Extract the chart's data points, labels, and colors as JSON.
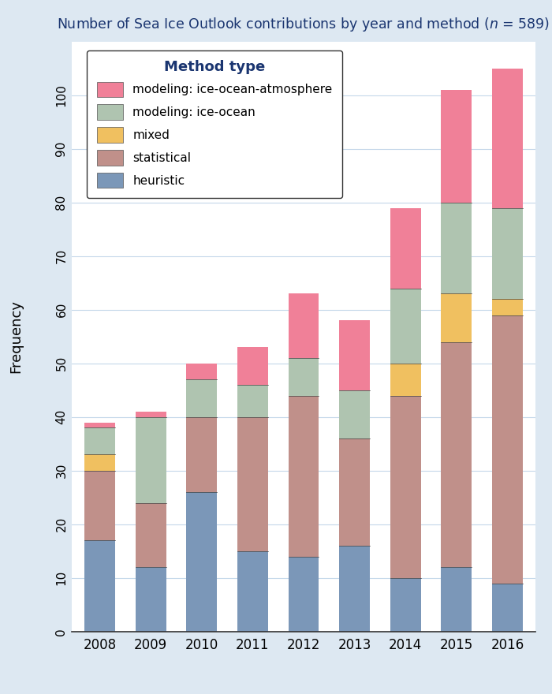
{
  "years": [
    "2008",
    "2009",
    "2010",
    "2011",
    "2012",
    "2013",
    "2014",
    "2015",
    "2016"
  ],
  "heuristic": [
    17,
    12,
    26,
    15,
    14,
    16,
    10,
    12,
    9
  ],
  "statistical": [
    13,
    12,
    14,
    25,
    30,
    20,
    34,
    42,
    50
  ],
  "mixed": [
    3,
    0,
    0,
    0,
    0,
    0,
    6,
    9,
    3
  ],
  "ice_ocean": [
    5,
    16,
    7,
    6,
    7,
    9,
    14,
    17,
    17
  ],
  "ice_ocean_atmosphere": [
    1,
    1,
    3,
    7,
    12,
    13,
    15,
    21,
    26
  ],
  "color_heuristic": "#7b97b8",
  "color_statistical": "#c0908a",
  "color_mixed": "#f0c060",
  "color_ice_ocean": "#afc4b0",
  "color_ice_ocean_atmosphere": "#f08098",
  "ylabel": "Frequency",
  "ylim": [
    0,
    110
  ],
  "yticks": [
    0,
    10,
    20,
    30,
    40,
    50,
    60,
    70,
    80,
    90,
    100
  ],
  "background_color": "#dde8f2",
  "plot_background": "#ffffff",
  "legend_title": "Method type",
  "title_color": "#1a3570"
}
